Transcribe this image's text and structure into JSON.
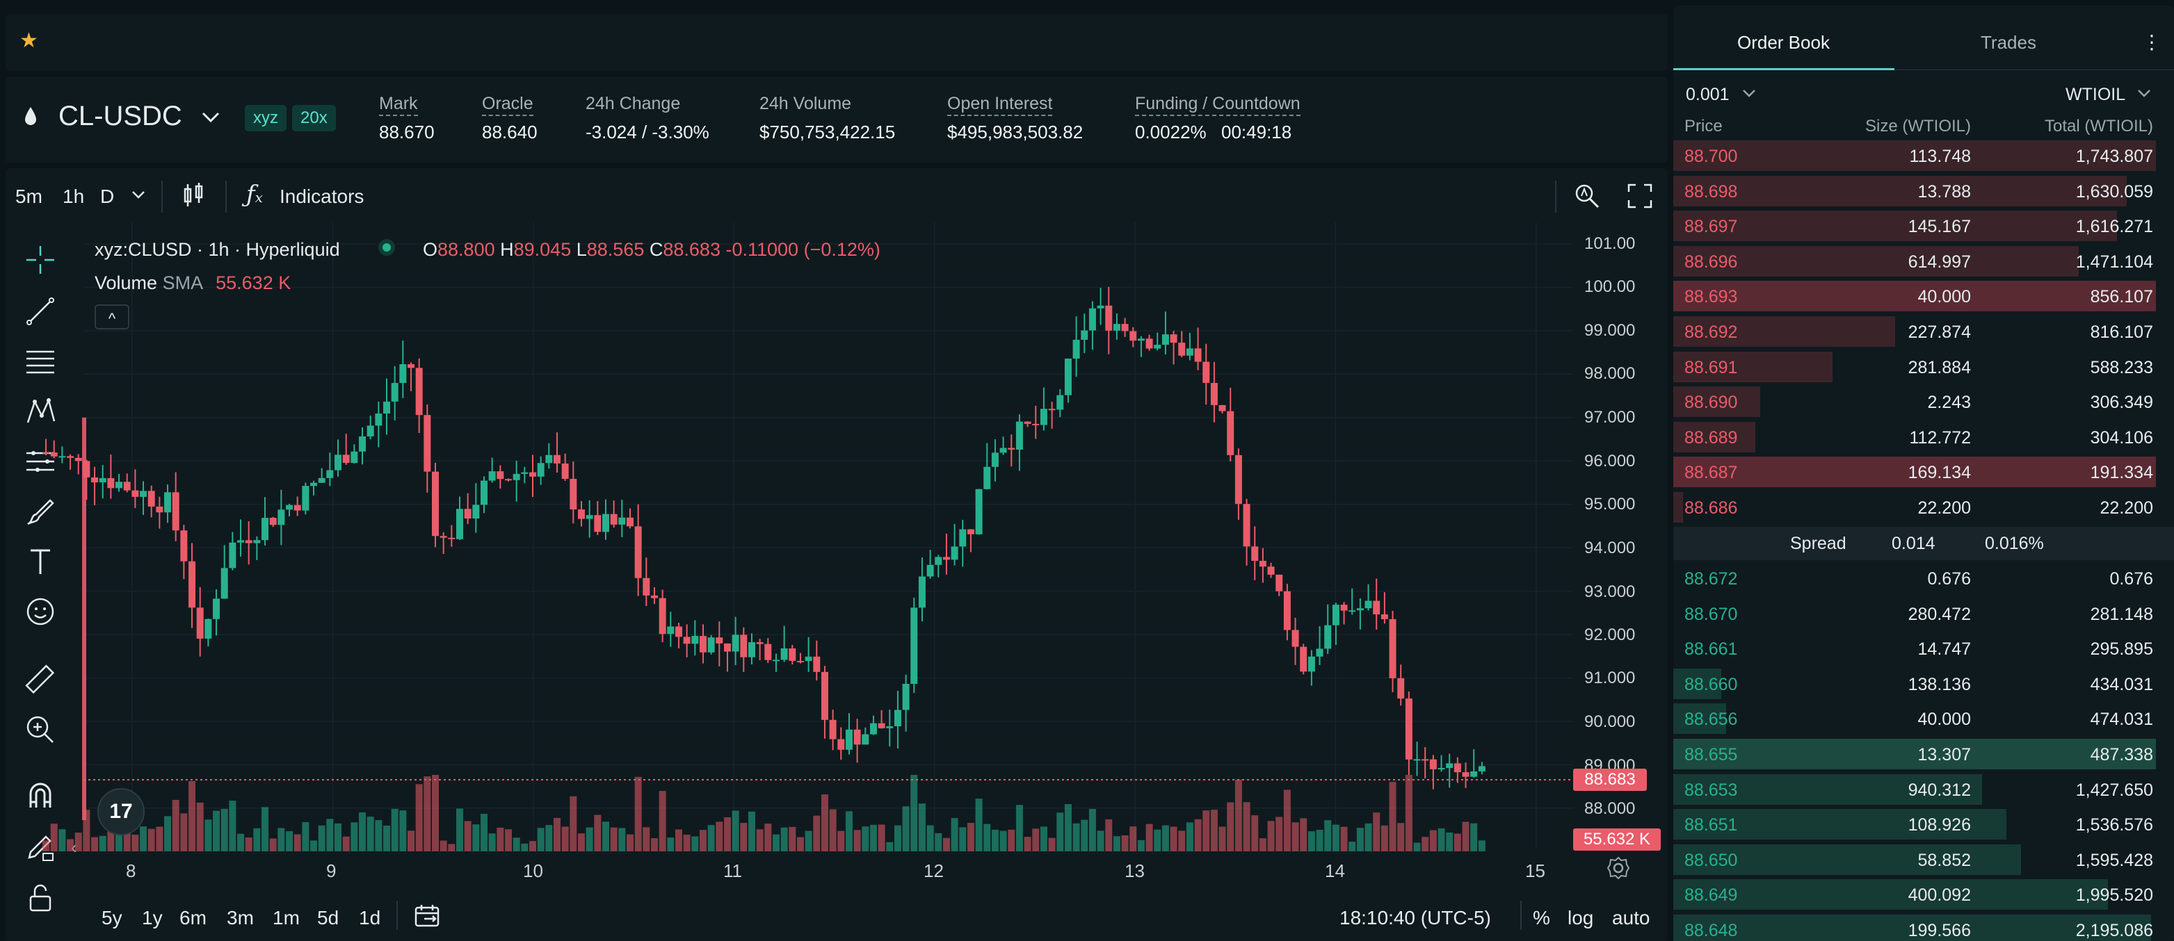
{
  "market": {
    "symbol": "CL-USDC",
    "badges": [
      "xyz",
      "20x"
    ],
    "stats": [
      {
        "label": "Mark",
        "value": "88.670"
      },
      {
        "label": "Oracle",
        "value": "88.640"
      },
      {
        "label": "24h Change",
        "value": "-3.024 / -3.30%"
      },
      {
        "label": "24h Volume",
        "value": "$750,753,422.15"
      },
      {
        "label": "Open Interest",
        "value": "$495,983,503.82"
      },
      {
        "label": "Funding / Countdown",
        "value": "0.0022%",
        "value2": "00:49:18"
      }
    ]
  },
  "toolbar": {
    "intervals": [
      "5m",
      "1h",
      "D"
    ],
    "active_interval": "1h",
    "indicators_label": "Indicators"
  },
  "legend": {
    "title": "xyz:CLUSD · 1h · Hyperliquid",
    "o_label": "O",
    "o": "88.800",
    "h_label": "H",
    "h": "89.045",
    "l_label": "L",
    "l": "88.565",
    "c_label": "C",
    "c": "88.683",
    "change": "-0.11000 (−0.12%)",
    "volume_label": "Volume",
    "sma_label": "SMA",
    "volume_value": "55.632 K",
    "collapse": "^"
  },
  "price_axis": {
    "ticks": [
      "101.00",
      "100.00",
      "99.000",
      "98.000",
      "97.000",
      "96.000",
      "95.000",
      "94.000",
      "93.000",
      "92.000",
      "91.000",
      "90.000",
      "89.000",
      "88.000"
    ],
    "last_price_tag": "88.683",
    "volume_tag": "55.632 K"
  },
  "time_axis": {
    "ticks": [
      "8",
      "9",
      "10",
      "11",
      "12",
      "13",
      "14",
      "15"
    ]
  },
  "bottom_bar": {
    "ranges": [
      "5y",
      "1y",
      "6m",
      "3m",
      "1m",
      "5d",
      "1d"
    ],
    "clock": "18:10:40 (UTC-5)",
    "percent": "%",
    "log": "log",
    "auto": "auto"
  },
  "chart_data": {
    "type": "candlestick",
    "title": "xyz:CLUSD · 1h · Hyperliquid",
    "x_ticks": [
      "8",
      "9",
      "10",
      "11",
      "12",
      "13",
      "14",
      "15"
    ],
    "y_range": [
      87.5,
      101.5
    ],
    "last_close": 88.683,
    "key_points": [
      {
        "x": 7.6,
        "y": 96.2
      },
      {
        "x": 8.2,
        "y": 95.0
      },
      {
        "x": 8.3,
        "y": 93.5
      },
      {
        "x": 8.35,
        "y": 91.5
      },
      {
        "x": 8.5,
        "y": 94.0
      },
      {
        "x": 8.9,
        "y": 95.3
      },
      {
        "x": 9.25,
        "y": 97.0
      },
      {
        "x": 9.4,
        "y": 98.5
      },
      {
        "x": 9.55,
        "y": 94.0
      },
      {
        "x": 9.8,
        "y": 95.5
      },
      {
        "x": 10.1,
        "y": 96.0
      },
      {
        "x": 10.3,
        "y": 94.5
      },
      {
        "x": 10.5,
        "y": 94.5
      },
      {
        "x": 10.55,
        "y": 93.2
      },
      {
        "x": 10.7,
        "y": 92.0
      },
      {
        "x": 11.0,
        "y": 91.8
      },
      {
        "x": 11.4,
        "y": 91.6
      },
      {
        "x": 11.5,
        "y": 89.5
      },
      {
        "x": 11.7,
        "y": 89.8
      },
      {
        "x": 11.85,
        "y": 90.0
      },
      {
        "x": 11.95,
        "y": 93.5
      },
      {
        "x": 12.2,
        "y": 94.5
      },
      {
        "x": 12.3,
        "y": 96.3
      },
      {
        "x": 12.6,
        "y": 97.0
      },
      {
        "x": 12.8,
        "y": 99.5
      },
      {
        "x": 13.0,
        "y": 99.0
      },
      {
        "x": 13.3,
        "y": 98.5
      },
      {
        "x": 13.45,
        "y": 97.0
      },
      {
        "x": 13.55,
        "y": 94.5
      },
      {
        "x": 13.75,
        "y": 92.8
      },
      {
        "x": 13.85,
        "y": 91.2
      },
      {
        "x": 14.05,
        "y": 92.6
      },
      {
        "x": 14.25,
        "y": 92.6
      },
      {
        "x": 14.4,
        "y": 89.0
      },
      {
        "x": 14.55,
        "y": 88.8
      },
      {
        "x": 14.75,
        "y": 88.683
      }
    ]
  },
  "orderbook": {
    "tabs": [
      "Order Book",
      "Trades"
    ],
    "active_tab": "Order Book",
    "precision": "0.001",
    "asset": "WTIOIL",
    "headers": [
      "Price",
      "Size (WTIOIL)",
      "Total (WTIOIL)"
    ],
    "asks": [
      {
        "price": "88.700",
        "size": "113.748",
        "total": "1,743.807",
        "depth": 1.0,
        "hl": false
      },
      {
        "price": "88.698",
        "size": "13.788",
        "total": "1,630.059",
        "depth": 0.94,
        "hl": false
      },
      {
        "price": "88.697",
        "size": "145.167",
        "total": "1,616.271",
        "depth": 0.92,
        "hl": false
      },
      {
        "price": "88.696",
        "size": "614.997",
        "total": "1,471.104",
        "depth": 0.84,
        "hl": false
      },
      {
        "price": "88.693",
        "size": "40.000",
        "total": "856.107",
        "depth": 1.0,
        "hl": true
      },
      {
        "price": "88.692",
        "size": "227.874",
        "total": "816.107",
        "depth": 0.46,
        "hl": false
      },
      {
        "price": "88.691",
        "size": "281.884",
        "total": "588.233",
        "depth": 0.33,
        "hl": false
      },
      {
        "price": "88.690",
        "size": "2.243",
        "total": "306.349",
        "depth": 0.18,
        "hl": false
      },
      {
        "price": "88.689",
        "size": "112.772",
        "total": "304.106",
        "depth": 0.17,
        "hl": false
      },
      {
        "price": "88.687",
        "size": "169.134",
        "total": "191.334",
        "depth": 1.0,
        "hl": true
      },
      {
        "price": "88.686",
        "size": "22.200",
        "total": "22.200",
        "depth": 0.02,
        "hl": false
      }
    ],
    "spread": {
      "label": "Spread",
      "value": "0.014",
      "pct": "0.016%"
    },
    "bids": [
      {
        "price": "88.672",
        "size": "0.676",
        "total": "0.676",
        "depth": 0.0,
        "hl": false
      },
      {
        "price": "88.670",
        "size": "280.472",
        "total": "281.148",
        "depth": 0.0,
        "hl": false
      },
      {
        "price": "88.661",
        "size": "14.747",
        "total": "295.895",
        "depth": 0.0,
        "hl": false
      },
      {
        "price": "88.660",
        "size": "138.136",
        "total": "434.031",
        "depth": 0.1,
        "hl": false
      },
      {
        "price": "88.656",
        "size": "40.000",
        "total": "474.031",
        "depth": 0.11,
        "hl": false
      },
      {
        "price": "88.655",
        "size": "13.307",
        "total": "487.338",
        "depth": 1.0,
        "hl": true
      },
      {
        "price": "88.653",
        "size": "940.312",
        "total": "1,427.650",
        "depth": 0.64,
        "hl": false
      },
      {
        "price": "88.651",
        "size": "108.926",
        "total": "1,536.576",
        "depth": 0.69,
        "hl": false
      },
      {
        "price": "88.650",
        "size": "58.852",
        "total": "1,595.428",
        "depth": 0.72,
        "hl": false
      },
      {
        "price": "88.649",
        "size": "400.092",
        "total": "1,995.520",
        "depth": 0.9,
        "hl": false
      },
      {
        "price": "88.648",
        "size": "199.566",
        "total": "2,195.086",
        "depth": 0.99,
        "hl": false
      }
    ]
  },
  "colors": {
    "up": "#27b28f",
    "down": "#ea5c6a",
    "accent": "#57d3c4",
    "favorite": "#f5b339",
    "panel": "#0f1a1e"
  },
  "icons": [
    "star-icon",
    "droplet-icon",
    "chevron-down-icon",
    "candles-icon",
    "fx-icon",
    "crosshair-icon",
    "trendline-icon",
    "fib-icon",
    "pattern-icon",
    "measure-lines-icon",
    "brush-icon",
    "text-icon",
    "emoji-icon",
    "ruler-icon",
    "zoom-icon",
    "magnet-icon",
    "lock-pencil-icon",
    "lock-icon",
    "search-zoom-icon",
    "fullscreen-icon",
    "date-range-icon",
    "settings-icon",
    "tradingview-logo",
    "more-icon"
  ]
}
